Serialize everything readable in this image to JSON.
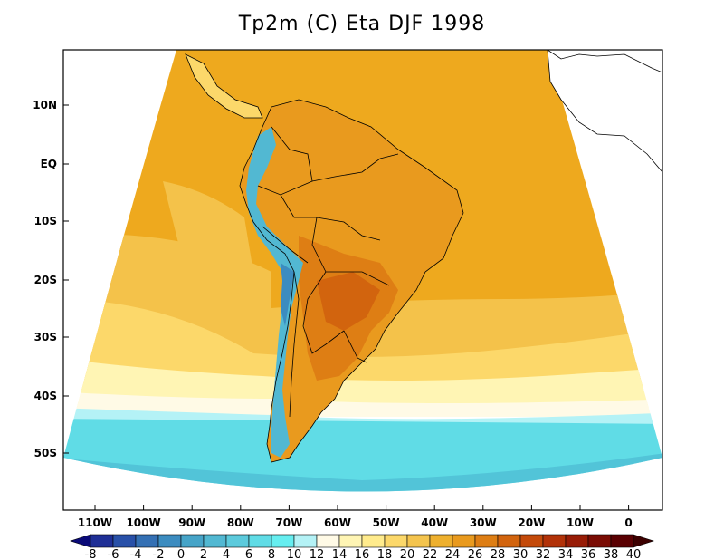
{
  "title": "Tp2m (C) Eta DJF 1998",
  "lat_labels": [
    "10N",
    "EQ",
    "10S",
    "20S",
    "30S",
    "40S",
    "50S"
  ],
  "lon_labels": [
    "110W",
    "100W",
    "90W",
    "80W",
    "70W",
    "60W",
    "50W",
    "40W",
    "30W",
    "20W",
    "10W",
    "0"
  ],
  "colorbar": {
    "levels": [
      "-8",
      "-6",
      "-4",
      "-2",
      "0",
      "2",
      "4",
      "6",
      "8",
      "10",
      "12",
      "14",
      "16",
      "18",
      "20",
      "22",
      "24",
      "26",
      "28",
      "30",
      "32",
      "34",
      "36",
      "38",
      "40"
    ],
    "colors": [
      "#0a0a78",
      "#1f2f96",
      "#2850a8",
      "#3470b4",
      "#3c8cc0",
      "#46a4c8",
      "#52b8d2",
      "#5ccadc",
      "#60dce6",
      "#66eef0",
      "#b4f2f6",
      "#fffae6",
      "#fff5b4",
      "#ffeb8c",
      "#fcd86a",
      "#f4c44e",
      "#eeb02e",
      "#e99a1e",
      "#de7e14",
      "#d2640e",
      "#c44a0a",
      "#b23208",
      "#981c06",
      "#7a0c04",
      "#5a0002",
      "#3c0000"
    ]
  },
  "map_colors": {
    "ocean_tropical": "#eea91e",
    "ocean_mid": "#f4c24a",
    "ocean_cool": "#fcd86a",
    "ocean_pale": "#fff5b4",
    "ocean_cream": "#fffae6",
    "ocean_icy": "#b4f2f6",
    "ocean_cold": "#60dce6",
    "ocean_colder": "#52c4d8",
    "land_warm": "#e99a1e",
    "land_hot": "#de7e14",
    "land_hotter": "#d2640e",
    "andes": "#52b8d2",
    "andes_high": "#3c8cc0"
  }
}
